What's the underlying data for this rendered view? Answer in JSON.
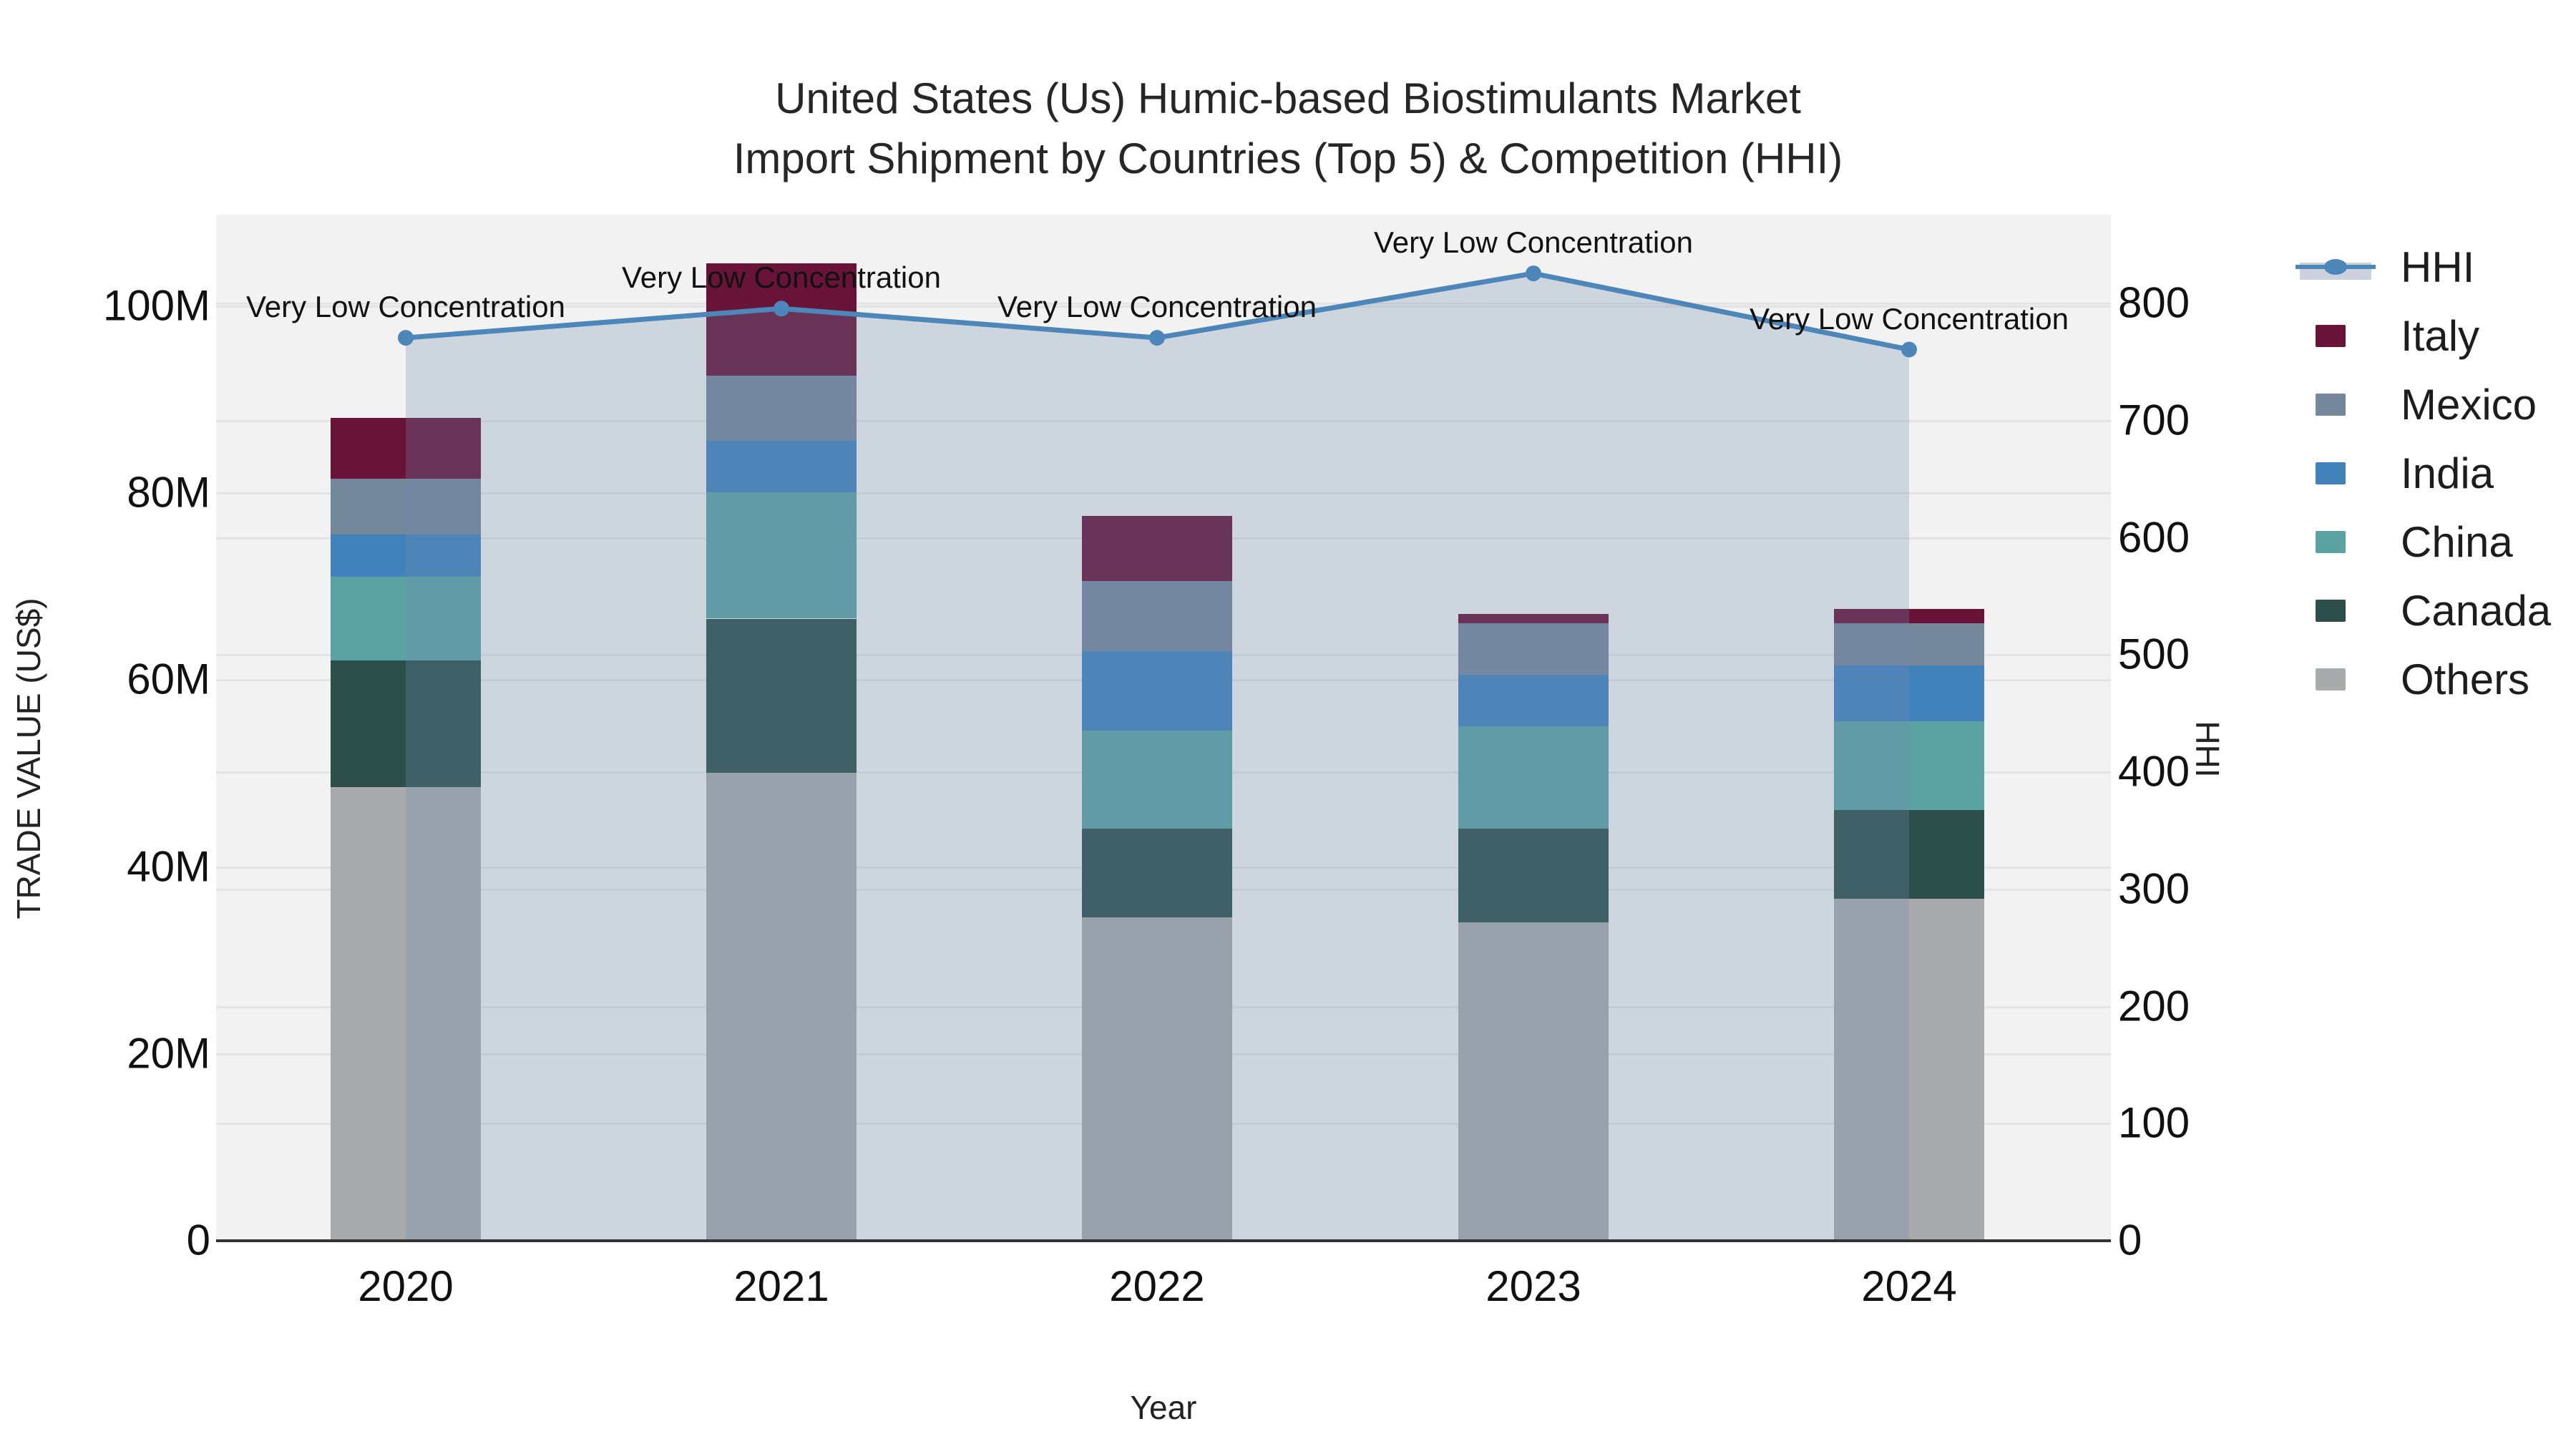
{
  "title": {
    "line1": "United States (Us) Humic-based Biostimulants Market",
    "line2": "Import Shipment by Countries (Top 5) & Competition (HHI)"
  },
  "annotations": [
    "Very Low Concentration",
    "Very Low Concentration",
    "Very Low Concentration",
    "Very Low Concentration",
    "Very Low Concentration"
  ],
  "legend": {
    "items": [
      {
        "label": "HHI",
        "type": "line",
        "color": "#4d86b8"
      },
      {
        "label": "Italy",
        "type": "swatch",
        "color": "#681337"
      },
      {
        "label": "Mexico",
        "type": "swatch",
        "color": "#75879a"
      },
      {
        "label": "India",
        "type": "swatch",
        "color": "#4282ba"
      },
      {
        "label": "China",
        "type": "swatch",
        "color": "#5ca2a2"
      },
      {
        "label": "Canada",
        "type": "swatch",
        "color": "#2d4f4b"
      },
      {
        "label": "Others",
        "type": "swatch",
        "color": "#a8aaab"
      }
    ]
  },
  "chart_data": {
    "type": "bar+line",
    "categories": [
      "2020",
      "2021",
      "2022",
      "2023",
      "2024"
    ],
    "bar_value_unit": "million US$",
    "series": [
      {
        "name": "Others",
        "color": "#a8aaab",
        "values": [
          48.5,
          50.0,
          34.5,
          34.0,
          36.5
        ]
      },
      {
        "name": "Canada",
        "color": "#2d4f4b",
        "values": [
          13.5,
          16.5,
          9.5,
          10.0,
          9.5
        ]
      },
      {
        "name": "China",
        "color": "#5ca2a2",
        "values": [
          9.0,
          13.5,
          10.5,
          11.0,
          9.5
        ]
      },
      {
        "name": "India",
        "color": "#4282ba",
        "values": [
          4.5,
          5.5,
          8.5,
          5.5,
          6.0
        ]
      },
      {
        "name": "Mexico",
        "color": "#75879a",
        "values": [
          6.0,
          7.0,
          7.5,
          5.5,
          4.5
        ]
      },
      {
        "name": "Italy",
        "color": "#681337",
        "values": [
          6.5,
          12.0,
          7.0,
          1.0,
          1.5
        ]
      }
    ],
    "bar_totals": [
      88.0,
      104.5,
      77.5,
      67.0,
      67.5
    ],
    "line": {
      "name": "HHI",
      "color": "#4d86b8",
      "fill_color": "rgba(110,140,175,0.28)",
      "values": [
        770,
        795,
        770,
        825,
        760
      ]
    },
    "left_axis": {
      "title": "TRADE VALUE (US$)",
      "tick_labels": [
        "0",
        "20M",
        "40M",
        "60M",
        "80M",
        "100M"
      ],
      "tick_values": [
        0,
        20,
        40,
        60,
        80,
        100
      ],
      "range": [
        0,
        109.7
      ]
    },
    "right_axis": {
      "title": "HHI",
      "tick_labels": [
        "0",
        "100",
        "200",
        "300",
        "400",
        "500",
        "600",
        "700",
        "800"
      ],
      "tick_values": [
        0,
        100,
        200,
        300,
        400,
        500,
        600,
        700,
        800
      ],
      "range": [
        0,
        875
      ]
    },
    "x_axis": {
      "title": "Year"
    },
    "grid": true,
    "legend_position": "right"
  }
}
